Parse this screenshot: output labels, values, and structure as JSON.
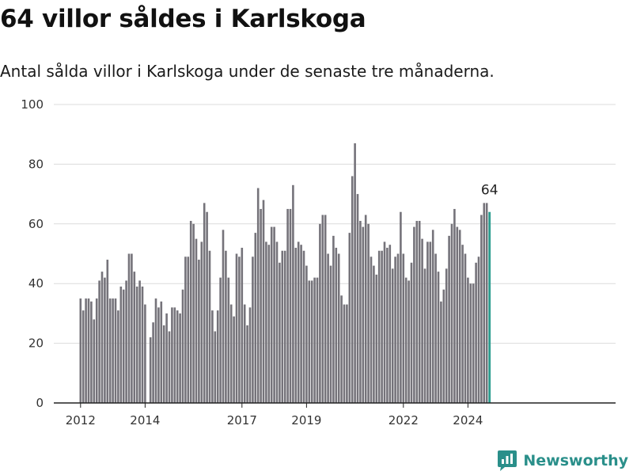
{
  "title": "64 villor såldes i Karlskoga",
  "subtitle": "Antal sålda villor i Karlskoga under de senaste tre månaderna.",
  "brand": {
    "name": "Newsworthy",
    "icon": "newsworthy-logo-icon"
  },
  "colors": {
    "bar": "#75737a",
    "highlight": "#2a9d8f",
    "grid": "#dcdcdc",
    "axis": "#222222",
    "brand": "#2a8f8a"
  },
  "chart_data": {
    "type": "bar",
    "ylim": [
      0,
      100
    ],
    "yticks": [
      0,
      20,
      40,
      60,
      80,
      100
    ],
    "xticks": [
      {
        "label": "2012",
        "date": "2012-01"
      },
      {
        "label": "2014",
        "date": "2014-01"
      },
      {
        "label": "2017",
        "date": "2017-01"
      },
      {
        "label": "2019",
        "date": "2019-01"
      },
      {
        "label": "2022",
        "date": "2022-01"
      },
      {
        "label": "2024",
        "date": "2024-01"
      }
    ],
    "last_value_label": "64",
    "series": [
      {
        "start": "2012-01",
        "values": [
          35,
          31,
          35,
          35,
          34,
          28,
          35,
          41,
          44,
          42,
          48,
          35,
          35,
          35,
          31,
          39,
          38,
          41,
          50,
          50,
          44,
          39,
          41,
          39,
          33,
          null,
          22,
          27,
          35,
          32,
          34,
          26,
          30,
          24,
          32,
          32,
          31,
          30,
          38,
          49,
          49,
          61,
          60,
          55,
          48,
          54,
          67,
          64,
          51,
          31,
          24,
          31,
          42,
          58,
          51,
          42,
          33,
          29,
          50,
          49,
          52,
          33,
          26,
          32,
          49,
          57,
          72,
          65,
          68,
          54,
          53,
          59,
          59,
          54,
          47,
          51,
          51,
          65,
          65,
          73,
          52,
          54,
          53,
          51,
          46,
          41,
          41,
          42,
          42,
          60,
          63,
          63,
          50,
          46,
          56,
          52,
          50,
          36,
          33,
          33,
          57,
          76,
          87,
          70,
          61,
          59,
          63,
          60,
          49,
          46,
          43,
          51,
          51,
          54,
          52,
          53,
          45,
          49,
          50,
          64,
          50,
          42,
          41,
          47,
          59,
          61,
          61,
          55,
          45,
          54,
          54,
          58,
          50,
          44,
          34,
          38,
          45,
          56,
          60,
          65,
          59,
          58,
          53,
          50,
          42,
          40,
          40,
          47,
          49,
          63,
          67,
          67,
          64
        ]
      }
    ]
  }
}
